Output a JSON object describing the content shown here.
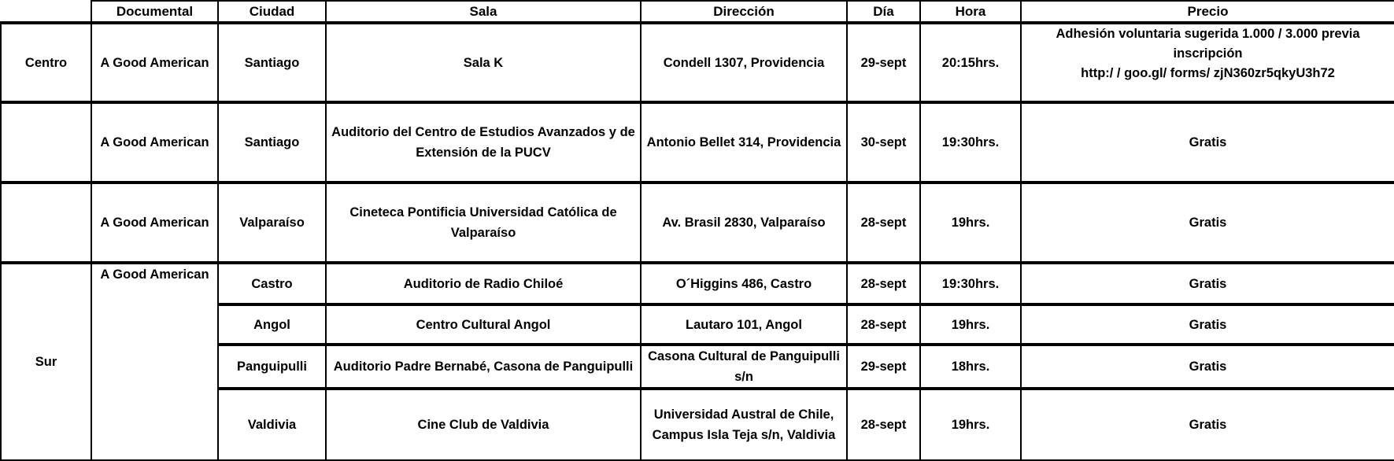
{
  "headers": [
    "",
    "Documental",
    "Ciudad",
    "Sala",
    "Dirección",
    "Día",
    "Hora",
    "Precio"
  ],
  "rows": [
    {
      "zona": "Centro",
      "documental": "A Good American",
      "ciudad": "Santiago",
      "sala": "Sala K",
      "direccion": "Condell 1307, Providencia",
      "dia": "29-sept",
      "hora": "20:15hrs.",
      "precio": "Adhesión voluntaria sugerida 1.000 /  3.000 previa inscripción",
      "precio_link": "http:/ / goo.gl/ forms/ zjN360zr5qkyU3h72"
    },
    {
      "zona": "",
      "documental": "A Good American",
      "ciudad": "Santiago",
      "sala": "Auditorio del Centro de Estudios Avanzados y de Extensión de la PUCV",
      "direccion": "Antonio Bellet 314, Providencia",
      "dia": "30-sept",
      "hora": "19:30hrs.",
      "precio": "Gratis"
    },
    {
      "zona": "",
      "documental": "A Good American",
      "ciudad": "Valparaíso",
      "sala": "Cineteca Pontificia Universidad Católica de Valparaíso",
      "direccion": "Av. Brasil 2830, Valparaíso",
      "dia": "28-sept",
      "hora": "19hrs.",
      "precio": "Gratis"
    },
    {
      "zona": "Sur",
      "documental": "A Good American",
      "ciudad": "Castro",
      "sala": "Auditorio de Radio Chiloé",
      "direccion": "O´Higgins 486, Castro",
      "dia": "28-sept",
      "hora": "19:30hrs.",
      "precio": "Gratis"
    },
    {
      "ciudad": "Angol",
      "sala": "Centro Cultural Angol",
      "direccion": "Lautaro 101, Angol",
      "dia": "28-sept",
      "hora": "19hrs.",
      "precio": "Gratis"
    },
    {
      "ciudad": "Panguipulli",
      "sala": "Auditorio Padre Bernabé, Casona de Panguipulli",
      "direccion": "Casona Cultural de Panguipulli s/n",
      "dia": "29-sept",
      "hora": "18hrs.",
      "precio": "Gratis"
    },
    {
      "ciudad": "Valdivia",
      "sala": "Cine Club de Valdivia",
      "direccion": "Universidad Austral de Chile, Campus Isla Teja s/n, Valdivia",
      "dia": "28-sept",
      "hora": "19hrs.",
      "precio": "Gratis"
    }
  ]
}
